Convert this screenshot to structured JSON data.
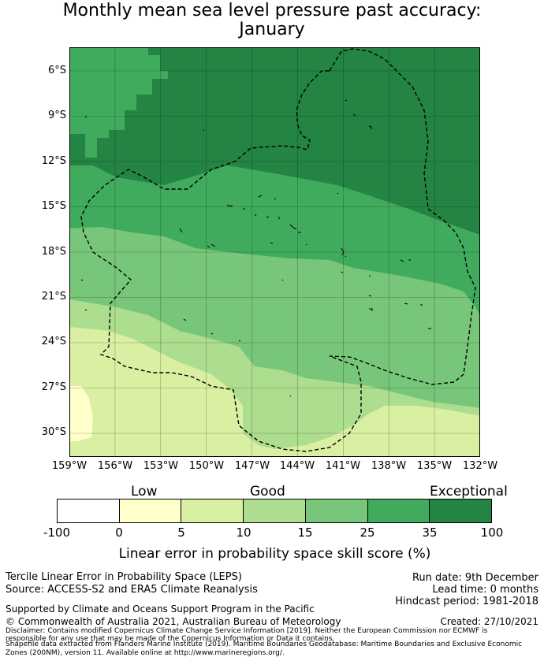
{
  "title": {
    "line1": "Monthly mean sea level pressure past accuracy:",
    "line2": "January"
  },
  "map": {
    "lon_labels": [
      "159°W",
      "156°W",
      "153°W",
      "150°W",
      "147°W",
      "144°W",
      "141°W",
      "138°W",
      "135°W",
      "132°W"
    ],
    "lat_labels": [
      "6°S",
      "9°S",
      "12°S",
      "15°S",
      "18°S",
      "21°S",
      "24°S",
      "27°S",
      "30°S"
    ],
    "colors": {
      "exceptional": "#238443",
      "band_35": "#41ab5d",
      "band_25": "#78c679",
      "band_15": "#addd8e",
      "band_10": "#d9f0a3",
      "band_5": "#ffffcc",
      "low": "#ffffff"
    }
  },
  "colorbar": {
    "categories": [
      "Low",
      "Good",
      "Exceptional"
    ],
    "ticks": [
      "-100",
      "0",
      "5",
      "10",
      "15",
      "25",
      "35",
      "100"
    ],
    "label": "Linear error in probability space skill score (%)"
  },
  "footer": {
    "left_line1": "Tercile Linear Error in Probability Space (LEPS)",
    "left_line2": "Source: ACCESS-S2 and ERA5 Climate Reanalysis",
    "right_line1": "Run date: 9th December",
    "right_line2": "Lead time: 0 months",
    "right_line3": "Hindcast period: 1981-2018",
    "support": "Supported by Climate and Oceans Support Program in the Pacific",
    "copyright": "© Commonwealth of Australia 2021, Australian Bureau of Meteorology",
    "created": "Created: 27/10/2021",
    "disclaimer1": "Disclaimer: Contains modified Copernicus Climate Change Service Information [2019]. Neither the European Commission nor ECMWF is",
    "disclaimer2": "responsible for any use that may be made of the Copernicus Information or Data it contains.",
    "disclaimer3": "Shapefile data extracted from Flanders Marine Institute (2019). Maritime Boundaries Geodatabase: Maritime Boundaries and Exclusive Economic",
    "disclaimer4": "Zones (200NM), version 11. Available online at http://www.marineregions.org/."
  }
}
